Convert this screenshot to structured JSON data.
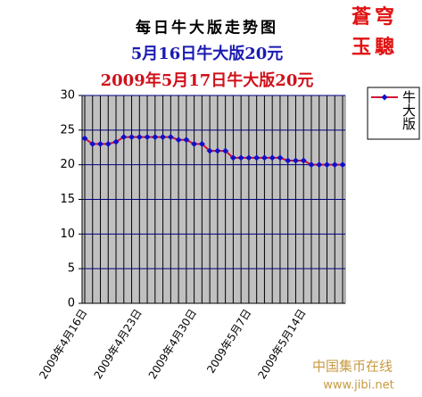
{
  "chart_data": {
    "type": "line",
    "title": "每日牛大版走势图",
    "subtitle": "5月16日牛大版20元",
    "subtitle2": "2009年5月17日牛大版20元",
    "categories": [
      "2009年4月16日",
      null,
      null,
      null,
      null,
      null,
      null,
      "2009年4月23日",
      null,
      null,
      null,
      null,
      null,
      null,
      "2009年4月30日",
      null,
      null,
      null,
      null,
      null,
      null,
      "2009年5月7日",
      null,
      null,
      null,
      null,
      null,
      null,
      "2009年5月14日",
      null,
      null,
      null,
      null,
      null
    ],
    "series": [
      {
        "name": "牛大版",
        "color": "#d0103a",
        "marker_color": "#1010c8",
        "values": [
          23.8,
          23,
          23,
          23,
          23.3,
          24,
          24,
          24,
          24,
          24,
          24,
          24,
          23.6,
          23.6,
          23,
          23,
          22,
          22,
          22,
          21,
          21,
          21,
          21,
          21,
          21,
          21,
          20.6,
          20.6,
          20.6,
          20,
          20,
          20,
          20,
          20
        ]
      }
    ],
    "ylim": [
      0,
      30
    ],
    "yticks": [
      0,
      5,
      10,
      15,
      20,
      25,
      30
    ],
    "grid": true,
    "legend": "right"
  },
  "stamp": [
    "蒼穹",
    "玉驄"
  ],
  "watermark": {
    "name": "中国集币在线",
    "url": "www.jibi.net"
  }
}
